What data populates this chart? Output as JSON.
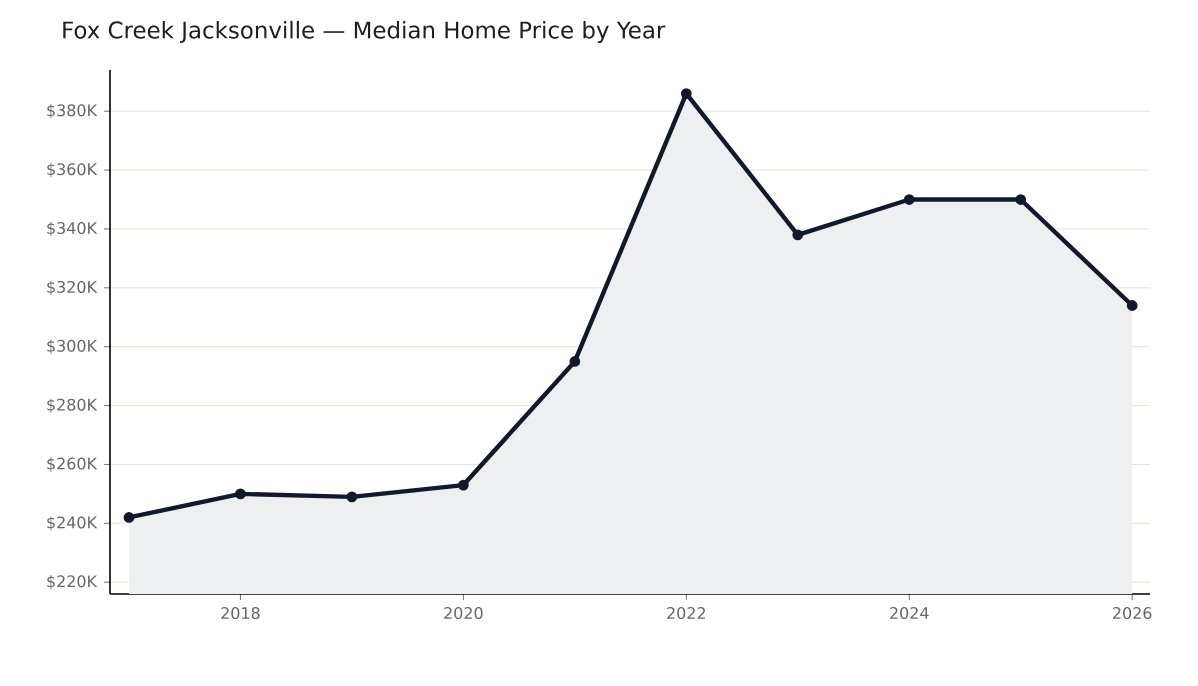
{
  "chart_data": {
    "type": "area",
    "title": "Fox Creek Jacksonville — Median Home Price by Year",
    "x": [
      2017,
      2018,
      2019,
      2020,
      2021,
      2022,
      2023,
      2024,
      2025,
      2026
    ],
    "series": [
      {
        "color": "#111a2c",
        "values": [
          242,
          250,
          249,
          253,
          295,
          386,
          338,
          350,
          350,
          314
        ]
      }
    ],
    "xlim": [
      2016.83,
      2026.16
    ],
    "ylim": [
      216,
      394
    ],
    "xticks": [
      2018,
      2020,
      2022,
      2024,
      2026
    ],
    "yticks": [
      {
        "value": 220,
        "label": "$220K"
      },
      {
        "value": 240,
        "label": "$240K"
      },
      {
        "value": 260,
        "label": "$260K"
      },
      {
        "value": 280,
        "label": "$280K"
      },
      {
        "value": 300,
        "label": "$300K"
      },
      {
        "value": 320,
        "label": "$320K"
      },
      {
        "value": 340,
        "label": "$340K"
      },
      {
        "value": 360,
        "label": "$360K"
      },
      {
        "value": 380,
        "label": "$380K"
      }
    ],
    "grid": "y",
    "marker": "circle",
    "line_style": "solid"
  }
}
